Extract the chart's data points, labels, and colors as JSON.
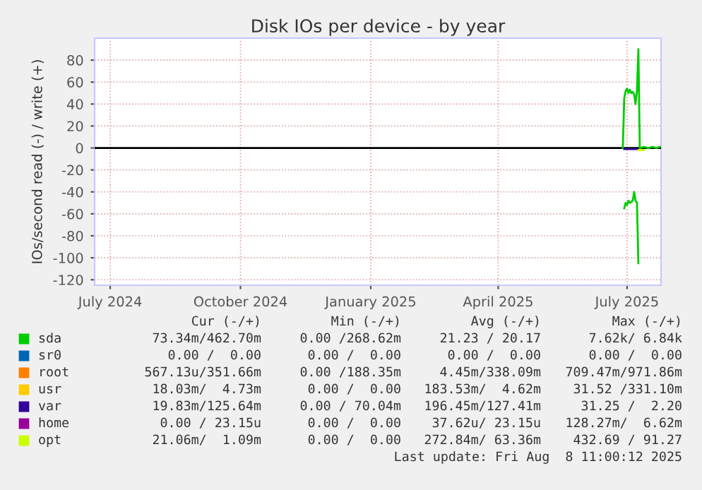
{
  "chart_data": {
    "type": "line",
    "title": "Disk IOs per device - by year",
    "ylabel": "IOs/second read (-) / write (+)",
    "x": [
      "2025-07-12",
      "2025-07-13",
      "2025-07-14",
      "2025-07-15",
      "2025-07-16",
      "2025-07-17",
      "2025-07-18",
      "2025-07-19",
      "2025-07-20",
      "2025-07-21",
      "2025-07-22",
      "2025-07-23",
      "2025-07-24",
      "2025-07-27",
      "2025-07-30",
      "2025-08-02",
      "2025-08-05",
      "2025-08-07"
    ],
    "series": [
      {
        "name": "sda",
        "color": "#00cc00",
        "values": [
          0,
          45,
          52,
          54,
          50,
          53,
          50,
          51,
          49,
          40,
          52,
          90,
          0,
          1,
          0,
          1,
          0,
          1
        ]
      },
      {
        "color": "#00cc00",
        "values": [
          null,
          -55,
          -50,
          -52,
          -48,
          -50,
          -49,
          -48,
          -40,
          -48,
          -50,
          -105,
          null,
          null,
          null,
          null,
          null,
          null
        ]
      },
      {
        "name": "sr0",
        "color": "#0066b3",
        "values": [
          null,
          null,
          null,
          null,
          null,
          null,
          null,
          null,
          null,
          null,
          null,
          null,
          null,
          null,
          null,
          null,
          null,
          null
        ]
      },
      {
        "name": "root",
        "color": "#ff8000",
        "values": [
          null,
          null,
          null,
          null,
          null,
          null,
          null,
          null,
          null,
          null,
          null,
          null,
          null,
          null,
          null,
          null,
          null,
          null
        ]
      },
      {
        "name": "usr",
        "color": "#ffcc00",
        "values": [
          null,
          null,
          null,
          null,
          null,
          null,
          null,
          null,
          null,
          null,
          null,
          null,
          null,
          null,
          null,
          null,
          null,
          null
        ]
      },
      {
        "name": "var",
        "color": "#330099",
        "values": [
          null,
          -1,
          -1,
          -1,
          -1,
          -1,
          -1,
          -1,
          -1,
          -1,
          -1,
          null,
          null,
          null,
          null,
          null,
          null,
          null
        ]
      },
      {
        "name": "home",
        "color": "#990099",
        "values": [
          null,
          null,
          null,
          null,
          null,
          null,
          null,
          null,
          null,
          null,
          null,
          null,
          null,
          null,
          null,
          null,
          null,
          null
        ]
      },
      {
        "name": "opt",
        "color": "#ccff00",
        "values": [
          null,
          null,
          null,
          null,
          null,
          null,
          null,
          null,
          null,
          null,
          null,
          -2,
          -2,
          -2,
          null,
          null,
          null,
          null
        ]
      }
    ],
    "xlim": [
      "2024-07-04",
      "2025-08-08"
    ],
    "xticks": [
      {
        "value": "2024-07-15",
        "label": "July 2024"
      },
      {
        "value": "2024-10-15",
        "label": "October 2024"
      },
      {
        "value": "2025-01-15",
        "label": "January 2025"
      },
      {
        "value": "2025-04-15",
        "label": "April 2025"
      },
      {
        "value": "2025-07-15",
        "label": "July 2025"
      }
    ],
    "ylim": [
      -125,
      100
    ],
    "yticks": [
      -120,
      -100,
      -80,
      -60,
      -40,
      -20,
      0,
      20,
      40,
      60,
      80
    ],
    "ref_lines": [
      {
        "axis": "y",
        "value": 0,
        "color": "#000000"
      }
    ],
    "grid": true,
    "legend": "bottom",
    "annotations": [
      "Cur (-/+)",
      "Min (-/+)",
      "Avg (-/+)",
      "Max (-/+)",
      "73.34m/462.70m",
      "0.00 /268.62m",
      "21.23 / 20.17",
      "7.62k/ 6.84k",
      "0.00 /  0.00",
      "0.00 /  0.00",
      "0.00 /  0.00",
      "0.00 /  0.00",
      "567.13u/351.66m",
      "0.00 /188.35m",
      "4.45m/338.09m",
      "709.47m/971.86m",
      "18.03m/  4.73m",
      "0.00 /  0.00",
      "183.53m/  4.62m",
      "31.52 /331.10m",
      "19.83m/125.64m",
      "0.00 / 70.04m",
      "196.45m/127.41m",
      "31.25 /  2.20",
      "0.00 / 23.15u",
      "0.00 /  0.00",
      "37.62u/ 23.15u",
      "128.27m/  6.62m",
      "21.06m/  1.09m",
      "0.00 /  0.00",
      "272.84m/ 63.36m",
      "432.69 / 91.27",
      "Last update: Fri Aug  8 11:00:12 2025"
    ]
  }
}
